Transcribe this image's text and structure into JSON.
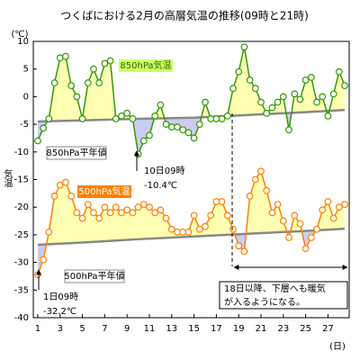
{
  "chart_data": {
    "type": "line",
    "title": "つくばにおける2月の高層気温の推移(09時と21時)",
    "y_unit": "(℃)",
    "y_label": "気温",
    "x_unit": "(日)",
    "x": [
      1,
      1.5,
      2,
      2.5,
      3,
      3.5,
      4,
      4.5,
      5,
      5.5,
      6,
      6.5,
      7,
      7.5,
      8,
      8.5,
      9,
      9.5,
      10,
      10.5,
      11,
      11.5,
      12,
      12.5,
      13,
      13.5,
      14,
      14.5,
      15,
      15.5,
      16,
      16.5,
      17,
      17.5,
      18,
      18.5,
      19,
      19.5,
      20,
      20.5,
      21,
      21.5,
      22,
      22.5,
      23,
      23.5,
      24,
      24.5,
      25,
      25.5,
      26,
      26.5,
      27,
      27.5,
      28,
      28.5
    ],
    "xlim": [
      0.6,
      28.9
    ],
    "xticks": [
      1,
      3,
      5,
      7,
      9,
      11,
      13,
      15,
      17,
      19,
      21,
      23,
      25,
      27
    ],
    "ylim": [
      -40,
      10
    ],
    "yticks": [
      -40,
      -35,
      -30,
      -25,
      -20,
      -15,
      -10,
      -5,
      0,
      5,
      10
    ],
    "grid": false,
    "series": [
      {
        "name": "850hPa気温",
        "color": "#339900",
        "fill_above": "#ffffb3",
        "fill_below": "#ccccf2",
        "values": [
          -8,
          -5.7,
          -4,
          2.5,
          7,
          7.3,
          2,
          0,
          -4,
          2.5,
          5,
          2.5,
          6,
          6.5,
          -4,
          -3.5,
          -3,
          -4,
          -10.4,
          -8,
          -7,
          -3.5,
          -1.5,
          -5,
          -5.5,
          -5.5,
          -6,
          -6.5,
          -7.5,
          -5,
          -1,
          -4,
          -4,
          -4,
          -3.5,
          1.5,
          4.5,
          9,
          3,
          1.5,
          -1,
          -3,
          -2,
          -1,
          0,
          -6,
          0.5,
          -0.5,
          3,
          3.5,
          -1,
          0,
          -3.5,
          0.5,
          4.5,
          2
        ],
        "normal": {
          "name": "850hPa平年値",
          "color": "#888888",
          "x": [
            1,
            5,
            10,
            15,
            20,
            25,
            28.5
          ],
          "values": [
            -4.5,
            -4.3,
            -4,
            -3.8,
            -3.3,
            -2.8,
            -2.4
          ]
        }
      },
      {
        "name": "500hPa気温",
        "color": "#ff8000",
        "fill_above": "#ffffb3",
        "fill_below": "#ccccf2",
        "values": [
          -32.2,
          -29.5,
          -24.5,
          -18,
          -16,
          -15.5,
          -18,
          -21,
          -22,
          -19.5,
          -21,
          -22,
          -20,
          -21,
          -20,
          -21,
          -20.5,
          -21,
          -20,
          -19.5,
          -20,
          -21,
          -20.5,
          -22,
          -24,
          -24.5,
          -24.5,
          -24.5,
          -21.5,
          -24,
          -23.5,
          -21.5,
          -19,
          -19,
          -21.5,
          -24,
          -27,
          -28,
          -18,
          -15,
          -13.5,
          -17,
          -21,
          -19.5,
          -22.5,
          -25.5,
          -21.5,
          -23,
          -27.5,
          -25.5,
          -24,
          -20.5,
          -19,
          -22,
          -20,
          -19.5
        ],
        "normal": {
          "name": "500hPa平年値",
          "color": "#888888",
          "x": [
            1,
            5,
            10,
            15,
            20,
            25,
            28.5
          ],
          "values": [
            -26.8,
            -26.4,
            -25.8,
            -25.3,
            -24.8,
            -24.3,
            -23.9
          ]
        }
      }
    ],
    "annotations": [
      {
        "lines": [
          "10日09時",
          "-10.4℃"
        ]
      },
      {
        "lines": [
          "1日09時",
          "-32.2℃"
        ]
      },
      {
        "lines": [
          "18日以降、下層へも暖気",
          "が入るようになる。"
        ]
      }
    ]
  }
}
